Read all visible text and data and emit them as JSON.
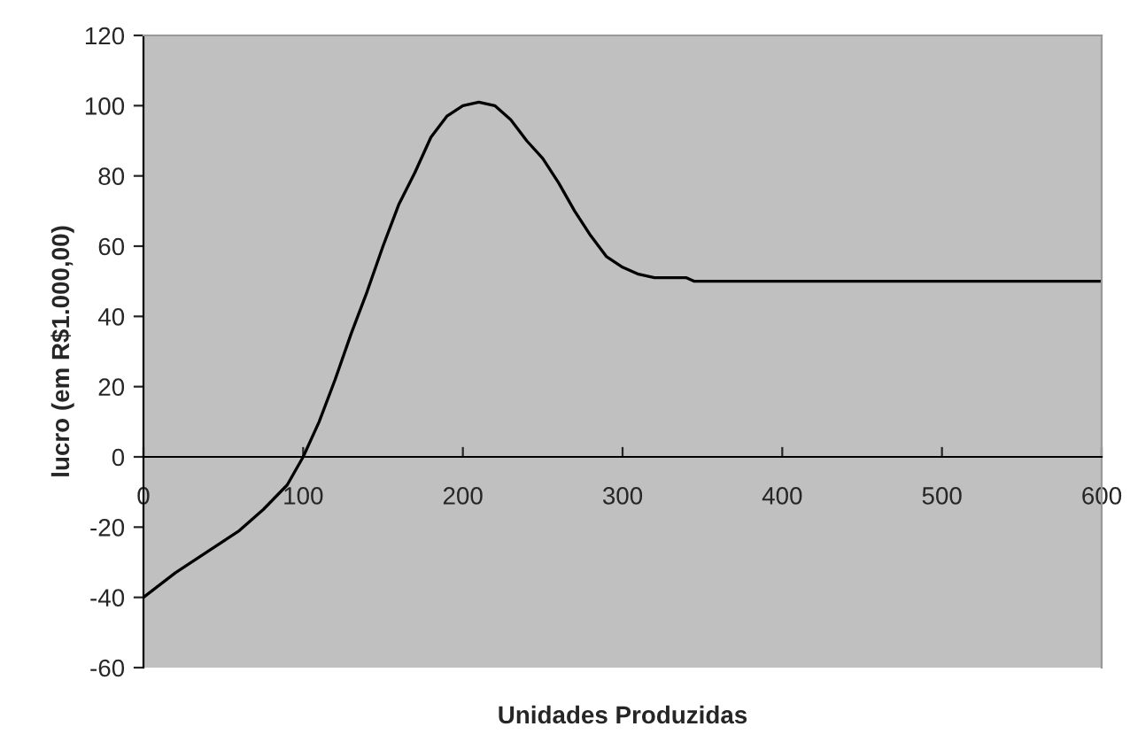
{
  "chart_data": {
    "type": "line",
    "xlabel": "Unidades Produzidas",
    "ylabel": "lucro (em R$1.000,00)",
    "series": [
      {
        "color": "#000000",
        "x": [
          0,
          20,
          40,
          60,
          75,
          90,
          100,
          110,
          120,
          130,
          140,
          150,
          160,
          170,
          180,
          190,
          200,
          210,
          220,
          230,
          240,
          250,
          260,
          270,
          280,
          290,
          300,
          310,
          320,
          340,
          345,
          600
        ],
        "values": [
          -40,
          -33,
          -27,
          -21,
          -15,
          -8,
          0,
          10,
          22,
          35,
          47,
          60,
          72,
          81,
          91,
          97,
          100,
          101,
          100,
          96,
          90,
          85,
          78,
          70,
          63,
          57,
          54,
          52,
          51,
          51,
          50,
          50
        ]
      }
    ],
    "xlim": [
      0,
      600
    ],
    "xticks": [
      0,
      100,
      200,
      300,
      400,
      500,
      600
    ],
    "ylim": [
      -60,
      120
    ],
    "yticks": [
      -60,
      -40,
      -20,
      0,
      20,
      40,
      60,
      80,
      100,
      120
    ],
    "grid": false,
    "legend": false,
    "marker": "none",
    "line_style": "solid"
  }
}
